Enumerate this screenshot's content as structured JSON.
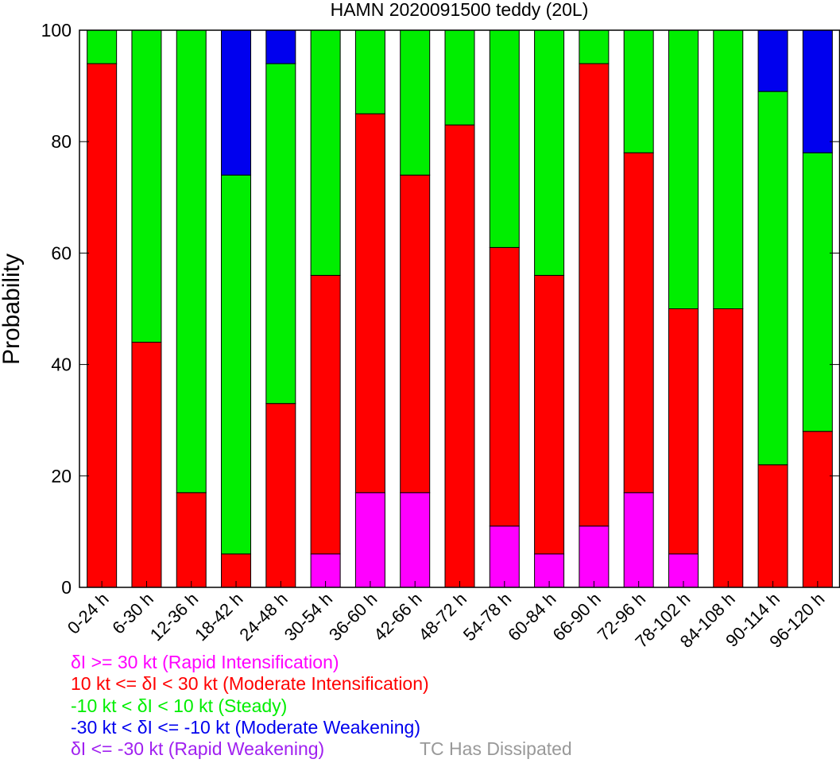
{
  "chart_data": {
    "type": "bar",
    "stacked": true,
    "title": "HAMN 2020091500 teddy (20L)",
    "ylabel": "Probability",
    "xlabel": "",
    "ylim": [
      0,
      100
    ],
    "yticks": [
      "0",
      "20",
      "40",
      "60",
      "80",
      "100"
    ],
    "categories": [
      "0-24 h",
      "6-30 h",
      "12-36 h",
      "18-42 h",
      "24-48 h",
      "30-54 h",
      "36-60 h",
      "42-66 h",
      "48-72 h",
      "54-78 h",
      "60-84 h",
      "66-90 h",
      "72-96 h",
      "78-102 h",
      "84-108 h",
      "90-114 h",
      "96-120 h"
    ],
    "series": [
      {
        "name": "Rapid Intensification",
        "color": "#ff00ff",
        "values": [
          0,
          0,
          0,
          0,
          0,
          6,
          17,
          17,
          0,
          11,
          6,
          11,
          17,
          6,
          0,
          0,
          0
        ]
      },
      {
        "name": "Moderate Intensification",
        "color": "#ff0000",
        "values": [
          94,
          44,
          17,
          6,
          33,
          50,
          68,
          57,
          83,
          50,
          50,
          83,
          61,
          44,
          50,
          22,
          28
        ]
      },
      {
        "name": "Steady",
        "color": "#00ee00",
        "values": [
          6,
          56,
          83,
          68,
          61,
          44,
          15,
          26,
          17,
          39,
          44,
          6,
          22,
          50,
          50,
          67,
          50
        ]
      },
      {
        "name": "Moderate Weakening",
        "color": "#0000ee",
        "values": [
          0,
          0,
          0,
          26,
          6,
          0,
          0,
          0,
          0,
          0,
          0,
          0,
          0,
          0,
          0,
          11,
          22
        ]
      },
      {
        "name": "Rapid Weakening",
        "color": "#a020f0",
        "values": [
          0,
          0,
          0,
          0,
          0,
          0,
          0,
          0,
          0,
          0,
          0,
          0,
          0,
          0,
          0,
          0,
          0
        ]
      }
    ],
    "grid": false,
    "legend_position": "bottom-left"
  },
  "legend": [
    {
      "text": "δI >= 30 kt (Rapid Intensification)",
      "color": "#ff00ff"
    },
    {
      "text": "10 kt <= δI < 30 kt (Moderate Intensification)",
      "color": "#ff0000"
    },
    {
      "text": "-10 kt < δI < 10 kt (Steady)",
      "color": "#00ee00"
    },
    {
      "text": "-30 kt < δI <= -10 kt (Moderate Weakening)",
      "color": "#0000ee"
    },
    {
      "text": "δI <= -30 kt (Rapid Weakening)",
      "color": "#a020f0"
    }
  ],
  "dissipated_label": {
    "text": "TC Has Dissipated",
    "color": "#999999"
  }
}
